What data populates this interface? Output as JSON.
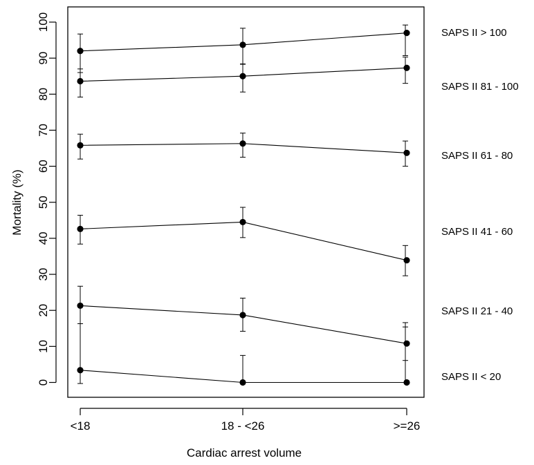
{
  "chart_data": {
    "type": "line",
    "xlabel": "Cardiac arrest volume",
    "ylabel": "Mortality (%)",
    "categories": [
      "<18",
      "18 - <26",
      ">=26"
    ],
    "ylim": [
      0,
      100
    ],
    "yticks": [
      0,
      10,
      20,
      30,
      40,
      50,
      60,
      70,
      80,
      90,
      100
    ],
    "grid": false,
    "legend": "right, labels beside each series",
    "series": [
      {
        "name": "SAPS II > 100",
        "values": [
          92,
          93.7,
          97
        ],
        "lower": [
          86,
          88.3,
          90.7
        ],
        "upper": [
          96.7,
          98.3,
          99.2
        ]
      },
      {
        "name": "SAPS II 81 - 100",
        "values": [
          83.6,
          85,
          87.3
        ],
        "lower": [
          79.2,
          80.6,
          83
        ],
        "upper": [
          87,
          88.4,
          90.3
        ]
      },
      {
        "name": "SAPS II 61 - 80",
        "values": [
          65.8,
          66.3,
          63.7
        ],
        "lower": [
          62,
          62.5,
          60
        ],
        "upper": [
          68.9,
          69.2,
          67
        ]
      },
      {
        "name": "SAPS II 41 - 60",
        "values": [
          42.6,
          44.5,
          33.9
        ],
        "lower": [
          38.4,
          40.2,
          29.6
        ],
        "upper": [
          46.4,
          48.6,
          38
        ]
      },
      {
        "name": "SAPS II 21 - 40",
        "values": [
          21.3,
          18.7,
          10.8
        ],
        "lower": [
          16.3,
          14.2,
          6.1
        ],
        "upper": [
          26.7,
          23.4,
          16.6
        ]
      },
      {
        "name": "SAPS II < 20",
        "values": [
          3.4,
          0,
          0
        ],
        "lower": [
          -0.3,
          0,
          0
        ],
        "upper": [
          16.3,
          7.5,
          15.4
        ]
      }
    ]
  }
}
